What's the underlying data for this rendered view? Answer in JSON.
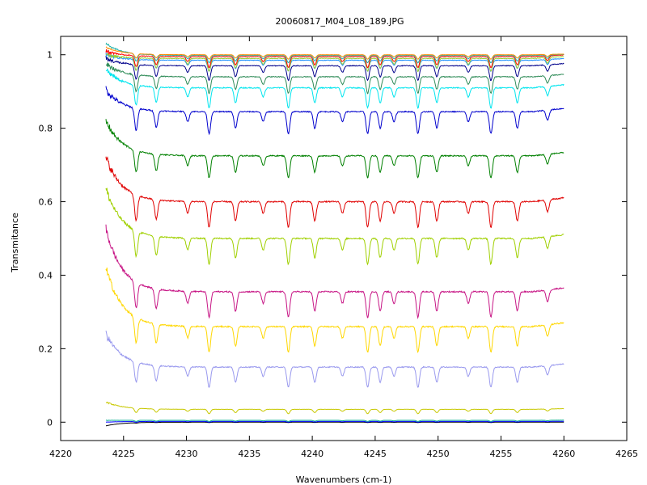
{
  "chart_data": {
    "type": "line",
    "title": "20060817_M04_L08_189.JPG",
    "xlabel": "Wavenumbers (cm-1)",
    "ylabel": "Transmitance",
    "xlim": [
      4220,
      4265
    ],
    "ylim": [
      -0.05,
      1.05
    ],
    "x_ticks": [
      4220,
      4225,
      4230,
      4235,
      4240,
      4245,
      4250,
      4255,
      4260,
      4265
    ],
    "y_ticks": [
      0,
      0.2,
      0.4,
      0.6,
      0.8,
      1
    ],
    "x_tick_labels": [
      "4220",
      "4225",
      "4230",
      "4235",
      "4240",
      "4245",
      "4250",
      "4255",
      "4260",
      "4265"
    ],
    "y_tick_labels": [
      "0",
      "0.2",
      "0.4",
      "0.6",
      "0.8",
      "1"
    ],
    "grid": false,
    "legend": "none",
    "x_range_data": [
      4223.6,
      4260
    ],
    "absorption_lines": [
      4226.0,
      4227.6,
      4230.1,
      4231.8,
      4233.9,
      4236.1,
      4238.1,
      4240.2,
      4242.4,
      4244.4,
      4245.4,
      4246.5,
      4248.4,
      4249.9,
      4252.4,
      4254.2,
      4256.3,
      4258.7
    ],
    "series": [
      {
        "baseline": 1.0,
        "start": 1.02,
        "depth": 0.012,
        "color": "#ff8c00"
      },
      {
        "baseline": 0.998,
        "start": 1.03,
        "depth": 0.02,
        "color": "#20b2aa"
      },
      {
        "baseline": 0.995,
        "start": 1.01,
        "depth": 0.03,
        "color": "#ff0000"
      },
      {
        "baseline": 0.99,
        "start": 1.0,
        "depth": 0.035,
        "color": "#9acd32"
      },
      {
        "baseline": 0.985,
        "start": 1.0,
        "depth": 0.03,
        "color": "#1e90ff"
      },
      {
        "baseline": 0.97,
        "start": 0.99,
        "depth": 0.04,
        "color": "#00008b"
      },
      {
        "baseline": 0.94,
        "start": 0.975,
        "depth": 0.045,
        "color": "#2e8b57"
      },
      {
        "baseline": 0.91,
        "start": 0.96,
        "depth": 0.055,
        "color": "#00e5ee"
      },
      {
        "baseline": 0.845,
        "start": 0.905,
        "depth": 0.06,
        "color": "#0000cd"
      },
      {
        "baseline": 0.725,
        "start": 0.82,
        "depth": 0.06,
        "color": "#008000"
      },
      {
        "baseline": 0.6,
        "start": 0.72,
        "depth": 0.07,
        "color": "#e00000"
      },
      {
        "baseline": 0.5,
        "start": 0.635,
        "depth": 0.07,
        "color": "#a0d000"
      },
      {
        "baseline": 0.355,
        "start": 0.525,
        "depth": 0.07,
        "color": "#c71585"
      },
      {
        "baseline": 0.26,
        "start": 0.42,
        "depth": 0.07,
        "color": "#ffd700"
      },
      {
        "baseline": 0.15,
        "start": 0.24,
        "depth": 0.055,
        "color": "#9999ee"
      },
      {
        "baseline": 0.035,
        "start": 0.055,
        "depth": 0.012,
        "color": "#c8c800"
      },
      {
        "baseline": 0.005,
        "start": 0.005,
        "depth": 0.003,
        "color": "#00aa88"
      },
      {
        "baseline": 0.002,
        "start": 0.0,
        "depth": 0.002,
        "color": "#0000ff"
      },
      {
        "baseline": 0.0,
        "start": -0.01,
        "depth": 0.001,
        "color": "#000000"
      }
    ]
  }
}
